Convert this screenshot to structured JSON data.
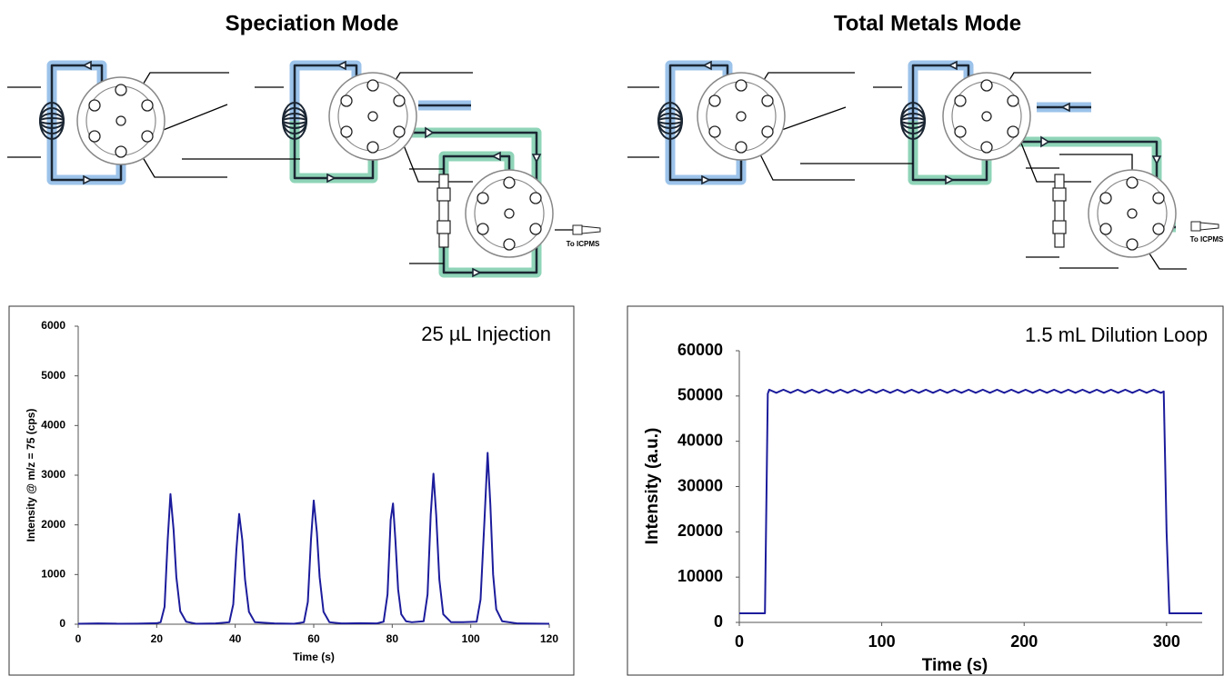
{
  "diagrams": [
    {
      "title": "Speciation Mode",
      "outlet_label": "To ICPMS"
    },
    {
      "title": "Total Metals Mode",
      "outlet_label": "To ICPMS"
    }
  ],
  "chart_data": [
    {
      "type": "line",
      "annotation": "25 µL Injection",
      "x_label": "Time (s)",
      "y_label": "Intensity @ m/z = 75 (cps)",
      "xlim": [
        0,
        120
      ],
      "xticks": [
        0,
        20,
        40,
        60,
        80,
        100,
        120
      ],
      "ylim": [
        0,
        6000
      ],
      "yticks": [
        0,
        1000,
        2000,
        3000,
        4000,
        5000,
        6000
      ],
      "series": [
        {
          "color": "#1c1c9c",
          "x": [
            0,
            5,
            10,
            15,
            20,
            21,
            22,
            22.8,
            23.5,
            24.3,
            25,
            26,
            27.5,
            30,
            35,
            38.5,
            39.5,
            40.3,
            41,
            41.8,
            42.5,
            43.5,
            45,
            50,
            55,
            57.5,
            58.5,
            59.3,
            60,
            60.8,
            61.5,
            62.5,
            64,
            67,
            72,
            76,
            77.8,
            78.8,
            79.6,
            80.2,
            80.8,
            81.5,
            82.3,
            83.5,
            85,
            88,
            89,
            89.8,
            90.5,
            91.2,
            92,
            93,
            95,
            98,
            101.5,
            102.5,
            103.5,
            104.3,
            105,
            105.7,
            106.5,
            108,
            112,
            120
          ],
          "values": [
            10,
            15,
            10,
            12,
            20,
            40,
            350,
            1700,
            2620,
            1900,
            950,
            260,
            50,
            10,
            15,
            40,
            400,
            1500,
            2220,
            1700,
            900,
            250,
            40,
            15,
            10,
            40,
            450,
            1700,
            2490,
            1850,
            950,
            250,
            40,
            15,
            20,
            15,
            50,
            600,
            2100,
            2430,
            1700,
            700,
            200,
            60,
            40,
            60,
            600,
            2200,
            3030,
            2200,
            900,
            200,
            40,
            40,
            50,
            500,
            2100,
            3450,
            2400,
            1000,
            300,
            60,
            15,
            10
          ]
        }
      ]
    },
    {
      "type": "line",
      "annotation": "1.5 mL Dilution Loop",
      "x_label": "Time (s)",
      "y_label": "Intensity (a.u.)",
      "xlim": [
        0,
        325
      ],
      "xticks": [
        0,
        100,
        200,
        300
      ],
      "ylim": [
        0,
        60000
      ],
      "yticks": [
        0,
        10000,
        20000,
        30000,
        40000,
        50000,
        60000
      ],
      "series": [
        {
          "color": "#1c1c9c",
          "x": [
            0,
            18,
            20,
            21,
            26,
            31,
            36,
            41,
            46,
            51,
            56,
            61,
            66,
            71,
            76,
            81,
            86,
            91,
            96,
            101,
            106,
            111,
            116,
            121,
            126,
            131,
            136,
            141,
            146,
            151,
            156,
            161,
            166,
            171,
            176,
            181,
            186,
            191,
            196,
            201,
            206,
            211,
            216,
            221,
            226,
            231,
            236,
            241,
            246,
            251,
            256,
            261,
            266,
            271,
            276,
            281,
            286,
            291,
            296,
            298,
            300,
            302,
            325
          ],
          "values": [
            2000,
            2000,
            50500,
            51400,
            50700,
            51400,
            50700,
            51400,
            50700,
            51400,
            50700,
            51400,
            50700,
            51400,
            50700,
            51400,
            50700,
            51400,
            50700,
            51400,
            50700,
            51400,
            50700,
            51400,
            50700,
            51400,
            50700,
            51400,
            50700,
            51400,
            50700,
            51400,
            50700,
            51400,
            50700,
            51400,
            50700,
            51400,
            50700,
            51400,
            50700,
            51400,
            50700,
            51400,
            50700,
            51400,
            50700,
            51400,
            50700,
            51400,
            50700,
            51400,
            50700,
            51400,
            50700,
            51400,
            50700,
            51400,
            50700,
            51000,
            20000,
            2000,
            2000
          ]
        }
      ]
    }
  ]
}
